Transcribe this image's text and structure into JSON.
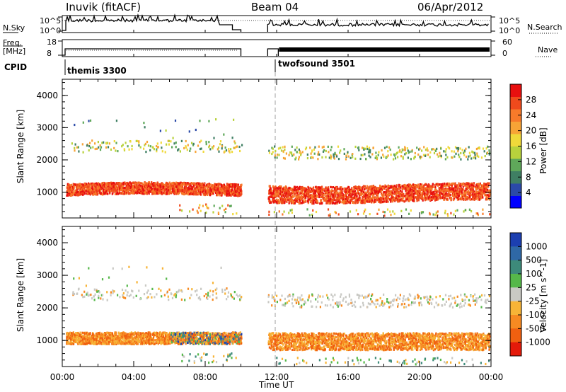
{
  "header": {
    "title": "Inuvik (fitACF)",
    "beam": "Beam 04",
    "date": "06/Apr/2012"
  },
  "top_panels": {
    "nsky_label": "N.Sky",
    "nsky_ticks": [
      "10^5",
      "10^0"
    ],
    "nsearch_label": "N.Search",
    "nsearch_ticks": [
      "10^5",
      "10^0"
    ],
    "freq_label": "Freq.",
    "freq_unit": "[MHz]",
    "freq_ticks": [
      "18",
      "8"
    ],
    "nave_label": "Nave",
    "nave_ticks": [
      "60",
      "0"
    ],
    "cpid_label": "CPID",
    "cpid_modes": [
      "themis 3300",
      "twofsound 3501"
    ]
  },
  "chart_data": [
    {
      "type": "heatmap",
      "title": "",
      "ylabel": "Slant Range [km]",
      "xlabel": "",
      "x_ticks": [
        "00:00",
        "04:00",
        "08:00",
        "12:00",
        "16:00",
        "20:00",
        "00:00"
      ],
      "y_ticks": [
        1000,
        2000,
        3000,
        4000
      ],
      "ylim": [
        200,
        4500
      ],
      "data_gap_hours": [
        10.0,
        11.5
      ],
      "colorbar": {
        "label": "Power [dB]",
        "ticks": [
          "4",
          "8",
          "12",
          "16",
          "20",
          "24",
          "28"
        ],
        "colors": [
          "#0000ff",
          "#2b4aa8",
          "#3f7f63",
          "#5fa85a",
          "#b8d23c",
          "#f0d93a",
          "#f7a436",
          "#f77a2a",
          "#f04a1c",
          "#e80f0f"
        ]
      }
    },
    {
      "type": "heatmap",
      "title": "",
      "ylabel": "Slant Range [km]",
      "xlabel": "Time UT",
      "x_ticks": [
        "00:00",
        "04:00",
        "08:00",
        "12:00",
        "16:00",
        "20:00",
        "00:00"
      ],
      "y_ticks": [
        1000,
        2000,
        3000,
        4000
      ],
      "ylim": [
        200,
        4500
      ],
      "data_gap_hours": [
        10.0,
        11.5
      ],
      "colorbar": {
        "label": "Velocity [m s^-1]",
        "ticks": [
          "1000",
          "500",
          "100",
          "25",
          "-25",
          "-100",
          "-500",
          "-1000"
        ],
        "colors": [
          "#1c3fb0",
          "#2f68a6",
          "#3d8a7a",
          "#56b84a",
          "#c9c9c4",
          "#f7b437",
          "#f78a22",
          "#f06010",
          "#e41a0a"
        ]
      }
    }
  ]
}
